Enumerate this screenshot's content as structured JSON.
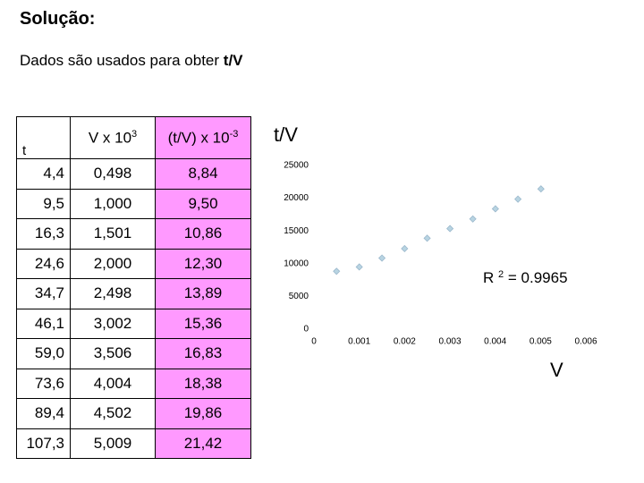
{
  "header": {
    "title": "Solução:",
    "subtitle": "Dados são usados para obter",
    "subtitle_bold": "t/V"
  },
  "table": {
    "columns": [
      {
        "text": "t"
      },
      {
        "text": "V x 10",
        "sup": "3"
      },
      {
        "text": "(t/V)  x 10",
        "sup": "-3"
      }
    ],
    "rows": [
      [
        "4,4",
        "0,498",
        "8,84"
      ],
      [
        "9,5",
        "1,000",
        "9,50"
      ],
      [
        "16,3",
        "1,501",
        "10,86"
      ],
      [
        "24,6",
        "2,000",
        "12,30"
      ],
      [
        "34,7",
        "2,498",
        "13,89"
      ],
      [
        "46,1",
        "3,002",
        "15,36"
      ],
      [
        "59,0",
        "3,506",
        "16,83"
      ],
      [
        "73,6",
        "4,004",
        "18,38"
      ],
      [
        "89,4",
        "4,502",
        "19,86"
      ],
      [
        "107,3",
        "5,009",
        "21,42"
      ]
    ]
  },
  "chart_data": {
    "type": "scatter",
    "y_label": "t/V",
    "x_label": "V",
    "annotation": {
      "text": "R",
      "sup": "2",
      "rest": "= 0.9965"
    },
    "x": [
      0.000498,
      0.001,
      0.001501,
      0.002,
      0.002498,
      0.003002,
      0.003506,
      0.004004,
      0.004502,
      0.005009
    ],
    "values": [
      8840,
      9500,
      10860,
      12300,
      13890,
      15360,
      16830,
      18380,
      19860,
      21420
    ],
    "color": "#b8d4e2",
    "xlim": [
      0,
      0.006
    ],
    "xticks": [
      0,
      0.001,
      0.002,
      0.003,
      0.004,
      0.005,
      0.006
    ],
    "ylim": [
      0,
      25000
    ],
    "yticks": [
      0,
      5000,
      10000,
      15000,
      20000,
      25000
    ]
  }
}
